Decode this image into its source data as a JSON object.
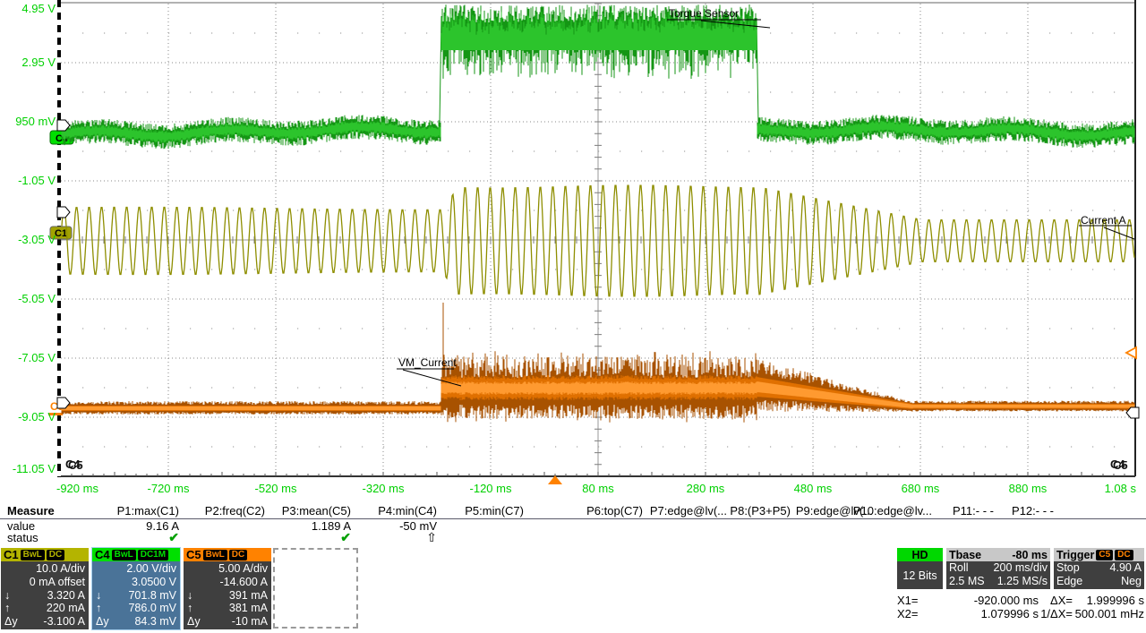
{
  "scope": {
    "y_axis_labels": [
      "4.95 V",
      "2.95 V",
      "950 mV",
      "-1.05 V",
      "-3.05 V",
      "-5.05 V",
      "-7.05 V",
      "-9.05 V",
      "-11.05 V"
    ],
    "x_axis_labels": [
      "-920 ms",
      "-720 ms",
      "-520 ms",
      "-320 ms",
      "-120 ms",
      "80 ms",
      "280 ms",
      "480 ms",
      "680 ms",
      "880 ms",
      "1.08 s"
    ],
    "annotations": {
      "c4_label": "Torque Sensor",
      "c1_label": "Current A",
      "c5_label": "VM_Current"
    },
    "channel_chips": [
      "C4",
      "C1",
      "C5"
    ],
    "corner_labels_left": [
      "C4",
      "C5"
    ],
    "corner_labels_right": [
      "C4",
      "C5"
    ]
  },
  "chart_data": {
    "type": "line",
    "x_axis": {
      "min_label": "-920 ms",
      "max_label": "1.08 s",
      "time_per_div": "200 ms/div",
      "divisions": 10
    },
    "y_axis": {
      "labels_follow_channel": "C4",
      "volts_per_div": 2.0,
      "divisions": 8,
      "top_label_V": 4.95,
      "bottom_label_V": -11.05
    },
    "series": [
      {
        "name": "C4",
        "label": "Torque Sensor",
        "color": "#17a317",
        "units": "V",
        "baseline_level_V": 0.95,
        "baseline_noise_V": 0.4,
        "pulse_level_V": 4.6,
        "pulse_noise_V": 1.2,
        "pulse_start": "-210 ms",
        "pulse_end": "375 ms"
      },
      {
        "name": "C1",
        "label": "Current A",
        "color": "#8e8e00",
        "units": "A",
        "waveform": "sine",
        "approx_freq_hz": 43,
        "amplitude_pre_A": 5.8,
        "amplitude_during_A": 9.2,
        "amplitude_post_A": 3.6,
        "burst_start": "-205 ms",
        "taper_end": "600 ms"
      },
      {
        "name": "C5",
        "label": "VM_Current",
        "color": "#e07000",
        "units": "A",
        "baseline_A": -0.45,
        "burst_mean_A": 1.2,
        "start_spike_A": 9,
        "burst_start": "-208 ms",
        "decay_end": "650 ms"
      }
    ]
  },
  "measure": {
    "label_col": [
      "Measure",
      "value",
      "status"
    ],
    "columns": [
      {
        "header": "P1:max(C1)",
        "value": "9.16 A",
        "status": "check"
      },
      {
        "header": "P2:freq(C2)",
        "value": "",
        "status": ""
      },
      {
        "header": "P3:mean(C5)",
        "value": "1.189 A",
        "status": "check"
      },
      {
        "header": "P4:min(C4)",
        "value": "-50 mV",
        "status": "up-arrow"
      },
      {
        "header": "P5:min(C7)",
        "value": "",
        "status": ""
      },
      {
        "header": "P6:top(C7)",
        "value": "",
        "status": ""
      },
      {
        "header": "P7:edge@lv(...",
        "value": "",
        "status": ""
      },
      {
        "header": "P8:(P3+P5)",
        "value": "",
        "status": ""
      },
      {
        "header": "P9:edge@lv(...",
        "value": "",
        "status": ""
      },
      {
        "header": "P10:edge@lv...",
        "value": "",
        "status": ""
      },
      {
        "header": "P11:- - -",
        "value": "",
        "status": ""
      },
      {
        "header": "P12:- - -",
        "value": "",
        "status": ""
      }
    ]
  },
  "channels": [
    {
      "id": "C1",
      "color": "#b4b400",
      "badges": [
        "BwL",
        "DC"
      ],
      "selected": false,
      "rows": [
        {
          "prefix": "",
          "text": "10.0 A/div"
        },
        {
          "prefix": "",
          "text": "0 mA offset"
        },
        {
          "prefix": "↓",
          "text": "3.320 A"
        },
        {
          "prefix": "↑",
          "text": "220 mA"
        },
        {
          "prefix": "Δy",
          "text": "-3.100 A"
        }
      ]
    },
    {
      "id": "C4",
      "color": "#00e000",
      "badges": [
        "BwL",
        "DC1M"
      ],
      "selected": true,
      "rows": [
        {
          "prefix": "",
          "text": "2.00 V/div"
        },
        {
          "prefix": "",
          "text": "3.0500 V"
        },
        {
          "prefix": "↓",
          "text": "701.8 mV"
        },
        {
          "prefix": "↑",
          "text": "786.0 mV"
        },
        {
          "prefix": "Δy",
          "text": "84.3 mV"
        }
      ]
    },
    {
      "id": "C5",
      "color": "#ff8200",
      "badges": [
        "BwL",
        "DC"
      ],
      "selected": false,
      "rows": [
        {
          "prefix": "",
          "text": "5.00 A/div"
        },
        {
          "prefix": "",
          "text": "-14.600 A"
        },
        {
          "prefix": "↓",
          "text": "391 mA"
        },
        {
          "prefix": "↑",
          "text": "381 mA"
        },
        {
          "prefix": "Δy",
          "text": "-10 mA"
        }
      ]
    }
  ],
  "acquisition": {
    "hd": {
      "title": "HD",
      "subtitle": "12 Bits"
    },
    "timebase": {
      "title": "Tbase",
      "offset": "-80 ms",
      "mode": "Roll",
      "scale": "200 ms/div",
      "record": "2.5 MS",
      "rate": "1.25 MS/s"
    },
    "trigger": {
      "title": "Trigger",
      "source_badge": "C5",
      "coupling_badge": "DC",
      "state": "Stop",
      "level": "4.90 A",
      "type": "Edge",
      "slope": "Neg"
    }
  },
  "cursors": {
    "x1_label": "X1=",
    "x1": "-920.000 ms",
    "dx_label": "ΔX=",
    "dx": "1.999996 s",
    "x2_label": "X2=",
    "x2": "1.079996 s",
    "invdx_label": "1/ΔX=",
    "invdx": "500.001 mHz"
  },
  "ui_colors": {
    "axis_text": "#00d000",
    "grid": "#909090",
    "trigger_marker": "#ff8200",
    "c1": "#b4b400",
    "c4": "#00e000",
    "c5": "#ff8200",
    "selected_channel_body": "#4a7398"
  }
}
